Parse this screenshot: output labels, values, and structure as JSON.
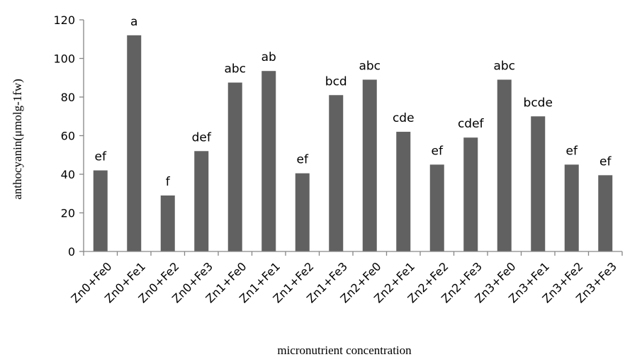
{
  "chart_data": {
    "type": "bar",
    "xlabel": "micronutrient concentration",
    "ylabel": "anthocyanin(μmolg-1fw)",
    "ylim": [
      0,
      120
    ],
    "yticks": [
      0,
      20,
      40,
      60,
      80,
      100,
      120
    ],
    "categories": [
      "Zn0+Fe0",
      "Zn0+Fe1",
      "Zn0+Fe2",
      "Zn0+Fe3",
      "Zn1+Fe0",
      "Zn1+Fe1",
      "Zn1+Fe2",
      "Zn1+Fe3",
      "Zn2+Fe0",
      "Zn2+Fe1",
      "Zn2+Fe2",
      "Zn2+Fe3",
      "Zn3+Fe0",
      "Zn3+Fe1",
      "Zn3+Fe2",
      "Zn3+Fe3"
    ],
    "values": [
      42,
      112,
      29,
      52,
      87.5,
      93.5,
      40.5,
      81,
      89,
      62,
      45,
      59,
      89,
      70,
      45,
      39.5
    ],
    "labels": [
      "ef",
      "a",
      "f",
      "def",
      "abc",
      "ab",
      "ef",
      "bcd",
      "abc",
      "cde",
      "ef",
      "cdef",
      "abc",
      "bcde",
      "ef",
      "ef"
    ],
    "grid": false,
    "legend": "none",
    "bar_color": "#616161",
    "axis_color": "#868686"
  }
}
